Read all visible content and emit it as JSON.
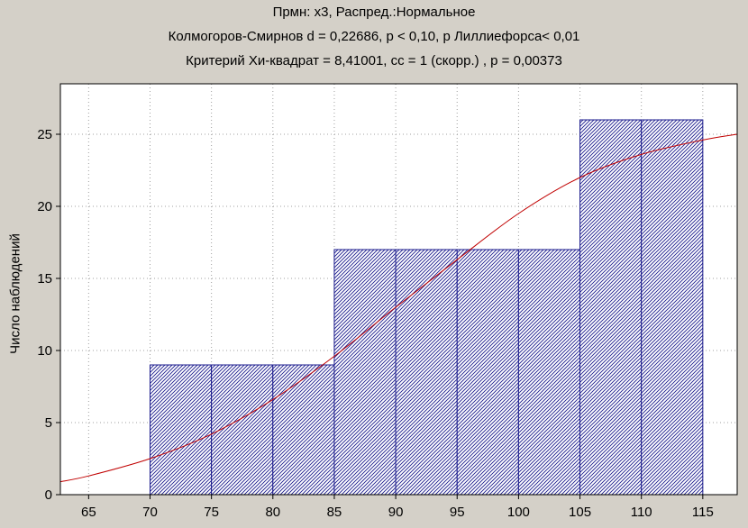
{
  "chart_data": {
    "type": "bar",
    "title_lines": [
      "Прмн: x3, Распред.:Нормальное",
      "Колмогоров-Смирнов d = 0,22686, p < 0,10, p Лиллиефорса< 0,01",
      "Критерий Хи-квадрат = 8,41001, сс = 1 (скорр.) , p = 0,00373"
    ],
    "ylabel": "Число наблюдений",
    "xlim": [
      62.7,
      117.8
    ],
    "ylim": [
      0,
      28.5
    ],
    "x_ticks": [
      65,
      70,
      75,
      80,
      85,
      90,
      95,
      100,
      105,
      110,
      115
    ],
    "y_ticks": [
      0,
      5,
      10,
      15,
      20,
      25
    ],
    "grid": true,
    "bars": [
      {
        "x0": 70,
        "x1": 75,
        "value": 9
      },
      {
        "x0": 75,
        "x1": 80,
        "value": 9
      },
      {
        "x0": 80,
        "x1": 85,
        "value": 9
      },
      {
        "x0": 85,
        "x1": 90,
        "value": 17
      },
      {
        "x0": 90,
        "x1": 95,
        "value": 17
      },
      {
        "x0": 95,
        "x1": 100,
        "value": 17
      },
      {
        "x0": 100,
        "x1": 105,
        "value": 17
      },
      {
        "x0": 105,
        "x1": 110,
        "value": 26
      },
      {
        "x0": 110,
        "x1": 115,
        "value": 26
      }
    ],
    "fitted_curve": {
      "x": [
        62.7,
        65,
        70,
        75,
        80,
        85,
        90,
        95,
        100,
        105,
        110,
        115,
        117.8
      ],
      "y": [
        0.9,
        1.3,
        2.5,
        4.2,
        6.6,
        9.6,
        13.0,
        16.3,
        19.5,
        22.0,
        23.6,
        24.6,
        25.0
      ]
    },
    "colors": {
      "background": "#d4d0c8",
      "plot_background": "#ffffff",
      "bar_stroke": "#1a1a8c",
      "curve": "#c00000",
      "grid": "#a0a0a0"
    }
  }
}
